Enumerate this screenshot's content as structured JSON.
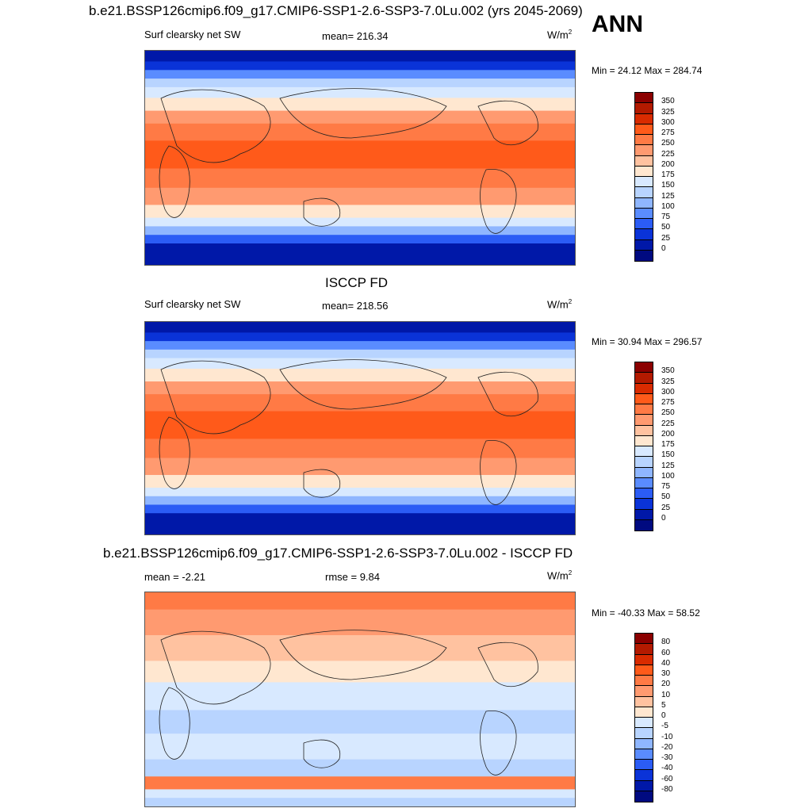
{
  "season": "ANN",
  "panels": [
    {
      "title": "b.e21.BSSP126cmip6.f09_g17.CMIP6-SSP1-2.6-SSP3-7.0Lu.002 (yrs 2045-2069)",
      "left": "Surf clearsky net SW",
      "middle": "mean= 216.34",
      "units": "W/m",
      "units_sup": "2",
      "minmax": "Min =  24.12 Max = 284.74",
      "ticks": [
        "350",
        "325",
        "300",
        "275",
        "250",
        "225",
        "200",
        "175",
        "150",
        "125",
        "100",
        "75",
        "50",
        "25",
        "0"
      ],
      "colors": [
        "#8b0000",
        "#b31a00",
        "#d92b00",
        "#ff5a1a",
        "#ff7a45",
        "#ff9a70",
        "#ffc2a0",
        "#ffe7d0",
        "#d8e9ff",
        "#b8d4ff",
        "#8fb6ff",
        "#5a8cff",
        "#2b5cf5",
        "#0a33d8",
        "#0018a8",
        "#000a80"
      ],
      "type": "abs"
    },
    {
      "title": "ISCCP FD",
      "left": "Surf clearsky net SW",
      "middle": "mean= 218.56",
      "units": "W/m",
      "units_sup": "2",
      "minmax": "Min =  30.94 Max = 296.57",
      "ticks": [
        "350",
        "325",
        "300",
        "275",
        "250",
        "225",
        "200",
        "175",
        "150",
        "125",
        "100",
        "75",
        "50",
        "25",
        "0"
      ],
      "colors": [
        "#8b0000",
        "#b31a00",
        "#d92b00",
        "#ff5a1a",
        "#ff7a45",
        "#ff9a70",
        "#ffc2a0",
        "#ffe7d0",
        "#d8e9ff",
        "#b8d4ff",
        "#8fb6ff",
        "#5a8cff",
        "#2b5cf5",
        "#0a33d8",
        "#0018a8",
        "#000a80"
      ],
      "type": "abs"
    },
    {
      "title": "b.e21.BSSP126cmip6.f09_g17.CMIP6-SSP1-2.6-SSP3-7.0Lu.002 - ISCCP FD",
      "left": "mean =  -2.21",
      "middle": "rmse =   9.84",
      "units": "W/m",
      "units_sup": "2",
      "minmax": "Min = -40.33 Max =  58.52",
      "ticks": [
        "80",
        "60",
        "40",
        "30",
        "20",
        "10",
        "5",
        "0",
        "-5",
        "-10",
        "-20",
        "-30",
        "-40",
        "-60",
        "-80"
      ],
      "colors": [
        "#8b0000",
        "#b31a00",
        "#d92b00",
        "#ff5a1a",
        "#ff7a45",
        "#ff9a70",
        "#ffc2a0",
        "#ffe7d0",
        "#d8e9ff",
        "#b8d4ff",
        "#8fb6ff",
        "#5a8cff",
        "#2b5cf5",
        "#0a33d8",
        "#0018a8",
        "#000a80"
      ],
      "type": "diff"
    }
  ]
}
